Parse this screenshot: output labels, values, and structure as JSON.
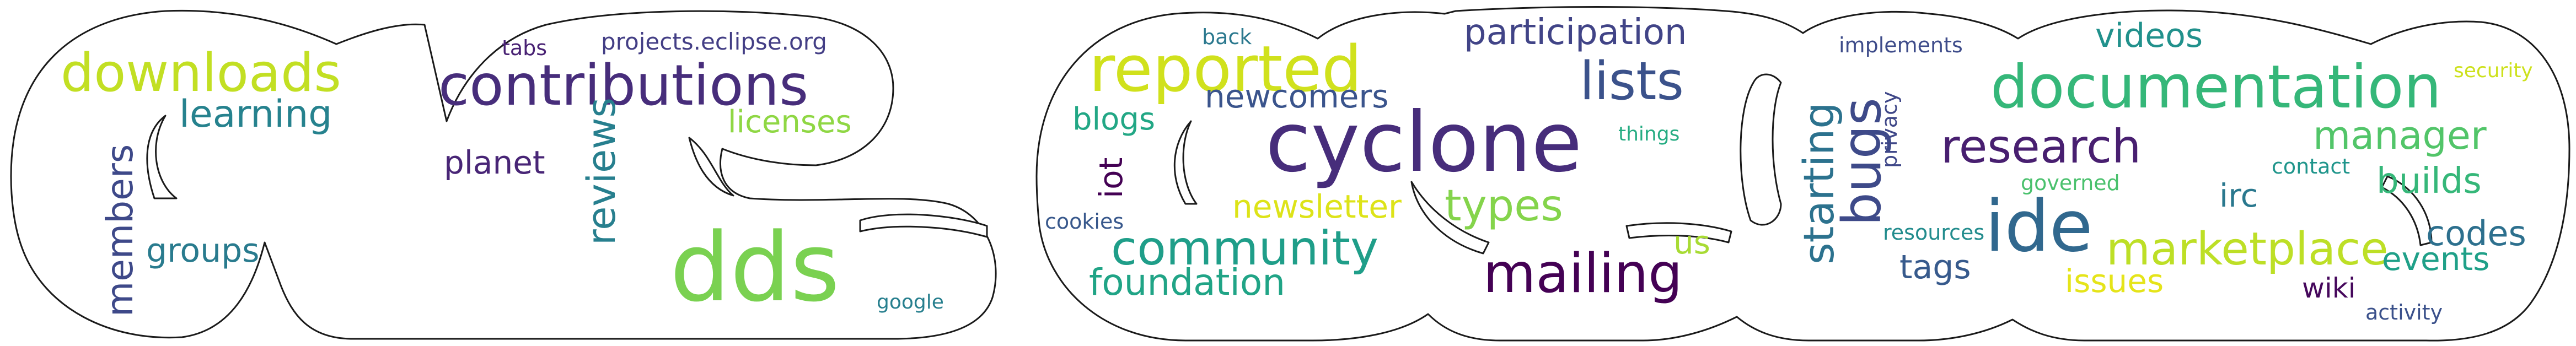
{
  "title": "",
  "words": [
    {
      "id": "cyclone",
      "text": "cyclone",
      "color": "#472d7b"
    },
    {
      "id": "dds",
      "text": "dds",
      "color": "#7ad151"
    },
    {
      "id": "contributions",
      "text": "contributions",
      "color": "#472d7b"
    },
    {
      "id": "downloads",
      "text": "downloads",
      "color": "#c2df23"
    },
    {
      "id": "documentation",
      "text": "documentation",
      "color": "#35b779"
    },
    {
      "id": "reported",
      "text": "reported",
      "color": "#d0e11c"
    },
    {
      "id": "ide",
      "text": "ide",
      "color": "#31688e"
    },
    {
      "id": "lists",
      "text": "lists",
      "color": "#3b528b"
    },
    {
      "id": "mailing",
      "text": "mailing",
      "color": "#440154"
    },
    {
      "id": "community",
      "text": "community",
      "color": "#1f9e89"
    },
    {
      "id": "marketplace",
      "text": "marketplace",
      "color": "#bddf26"
    },
    {
      "id": "research",
      "text": "research",
      "color": "#481f70"
    },
    {
      "id": "learning",
      "text": "learning",
      "color": "#26828e"
    },
    {
      "id": "bugs",
      "text": "bugs",
      "color": "#3e4a89"
    },
    {
      "id": "reviews",
      "text": "reviews",
      "color": "#277f8e"
    },
    {
      "id": "types",
      "text": "types",
      "color": "#84d44b"
    },
    {
      "id": "members",
      "text": "members",
      "color": "#3e4989"
    },
    {
      "id": "starting",
      "text": "starting",
      "color": "#2c728e"
    },
    {
      "id": "participation",
      "text": "participation",
      "color": "#414487"
    },
    {
      "id": "licenses",
      "text": "licenses",
      "color": "#8fd744"
    },
    {
      "id": "newsletter",
      "text": "newsletter",
      "color": "#dde318"
    },
    {
      "id": "foundation",
      "text": "foundation",
      "color": "#20a486"
    },
    {
      "id": "manager",
      "text": "manager",
      "color": "#52c569"
    },
    {
      "id": "groups",
      "text": "groups",
      "color": "#297b8e"
    },
    {
      "id": "planet",
      "text": "planet",
      "color": "#482576"
    },
    {
      "id": "blogs",
      "text": "blogs",
      "color": "#22a785"
    },
    {
      "id": "newcomers",
      "text": "newcomers",
      "color": "#3a548c"
    },
    {
      "id": "videos",
      "text": "videos",
      "color": "#21918c"
    },
    {
      "id": "builds",
      "text": "builds",
      "color": "#35b779"
    },
    {
      "id": "codes",
      "text": "codes",
      "color": "#2d708e"
    },
    {
      "id": "events",
      "text": "events",
      "color": "#1fa088"
    },
    {
      "id": "iot",
      "text": "iot",
      "color": "#440154"
    },
    {
      "id": "tags",
      "text": "tags",
      "color": "#375a8c"
    },
    {
      "id": "issues",
      "text": "issues",
      "color": "#e5e419"
    },
    {
      "id": "irc",
      "text": "irc",
      "color": "#2a788e"
    },
    {
      "id": "us",
      "text": "us",
      "color": "#a8db34"
    },
    {
      "id": "wiki",
      "text": "wiki",
      "color": "#46085c"
    },
    {
      "id": "projects-eclipse-org",
      "text": "projects.eclipse.org",
      "color": "#433e85"
    },
    {
      "id": "tabs",
      "text": "tabs",
      "color": "#482173"
    },
    {
      "id": "google",
      "text": "google",
      "color": "#277f8e"
    },
    {
      "id": "back",
      "text": "back",
      "color": "#2a788e"
    },
    {
      "id": "implements",
      "text": "implements",
      "color": "#3e4c8a"
    },
    {
      "id": "security",
      "text": "security",
      "color": "#cde11d"
    },
    {
      "id": "things",
      "text": "things",
      "color": "#25ac82"
    },
    {
      "id": "privacy",
      "text": "privacy",
      "color": "#3f4788"
    },
    {
      "id": "governed",
      "text": "governed",
      "color": "#4ac16d"
    },
    {
      "id": "contact",
      "text": "contact",
      "color": "#1f958b"
    },
    {
      "id": "cookies",
      "text": "cookies",
      "color": "#38588c"
    },
    {
      "id": "resources",
      "text": "resources",
      "color": "#228c8d"
    },
    {
      "id": "activity",
      "text": "activity",
      "color": "#3b518b"
    }
  ]
}
